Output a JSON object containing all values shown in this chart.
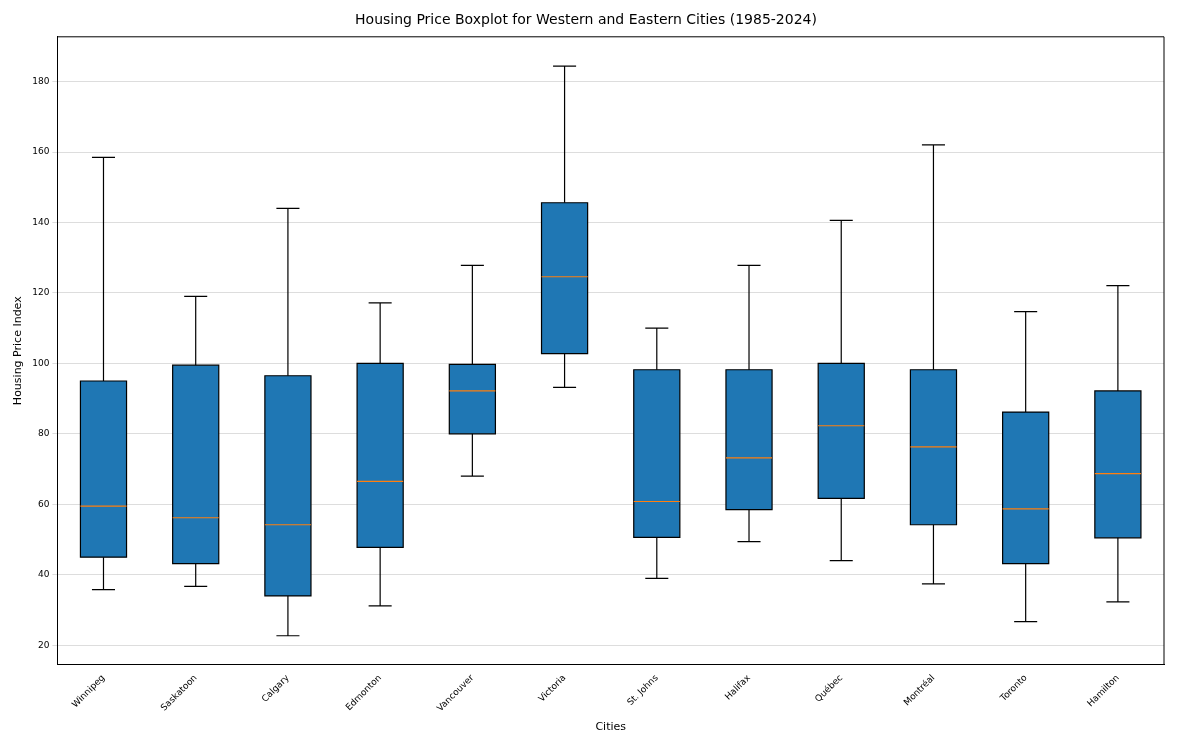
{
  "chart_data": {
    "type": "box",
    "title": "Housing Price Boxplot for Western and Eastern Cities (1985-2024)",
    "xlabel": "Cities",
    "ylabel": "Housing Price Index",
    "categories": [
      "Winnipeg",
      "Saskatoon",
      "Calgary",
      "Edmonton",
      "Vancouver",
      "Victoria",
      "St. Johns",
      "Halifax",
      "Québec",
      "Montréal",
      "Toronto",
      "Hamilton"
    ],
    "color": "#1f77b4",
    "boxes": [
      {
        "low": 35.8,
        "q1": 45,
        "median": 59.5,
        "q3": 95,
        "high": 158.5
      },
      {
        "low": 36.7,
        "q1": 43.2,
        "median": 56.2,
        "q3": 99.5,
        "high": 119
      },
      {
        "low": 22.7,
        "q1": 34,
        "median": 54.2,
        "q3": 96.5,
        "high": 144
      },
      {
        "low": 31.2,
        "q1": 47.8,
        "median": 66.5,
        "q3": 100,
        "high": 117.2
      },
      {
        "low": 68,
        "q1": 80,
        "median": 92.2,
        "q3": 99.7,
        "high": 127.8
      },
      {
        "low": 93.2,
        "q1": 102.8,
        "median": 124.6,
        "q3": 145.6,
        "high": 184.4
      },
      {
        "low": 39,
        "q1": 50.6,
        "median": 60.8,
        "q3": 98.2,
        "high": 110
      },
      {
        "low": 49.4,
        "q1": 58.5,
        "median": 73.2,
        "q3": 98.2,
        "high": 127.8
      },
      {
        "low": 44,
        "q1": 61.7,
        "median": 82.3,
        "q3": 100,
        "high": 140.6
      },
      {
        "low": 37.4,
        "q1": 54.2,
        "median": 76.3,
        "q3": 98.2,
        "high": 162
      },
      {
        "low": 26.7,
        "q1": 43.2,
        "median": 58.7,
        "q3": 86.2,
        "high": 114.7
      },
      {
        "low": 32.3,
        "q1": 50.5,
        "median": 68.7,
        "q3": 92.2,
        "high": 122.1
      }
    ],
    "ylim": [
      14.5,
      192.7
    ],
    "yticks": [
      20,
      40,
      60,
      80,
      100,
      120,
      140,
      160,
      180
    ],
    "grid": "y",
    "legend": false
  }
}
